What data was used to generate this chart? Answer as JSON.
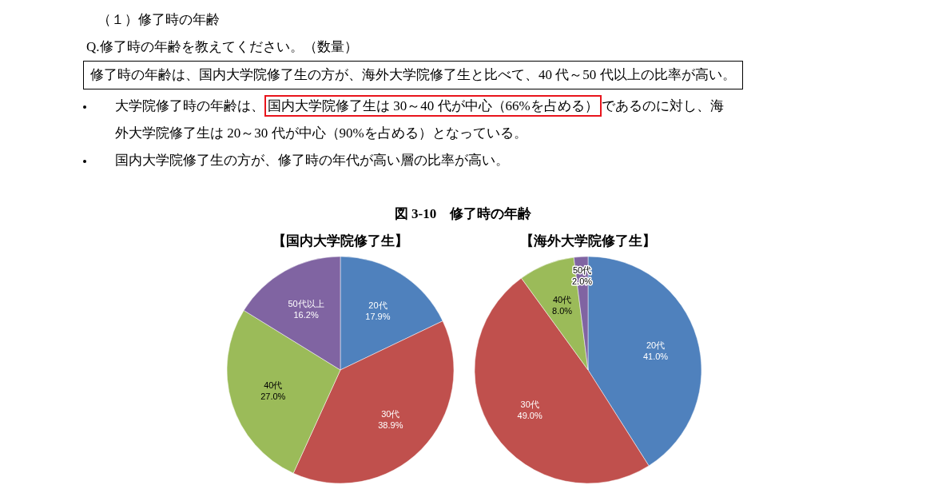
{
  "chart_data": [
    {
      "type": "other",
      "title": "（１）修了時の年齢",
      "annotations": [
        "Q.修了時の年齢を教えてください。（数量）",
        "修了時の年齢は、国内大学院修了生の方が、海外大学院修了生と比べて、40 代～50 代以上の比率が高い。",
        "大学院修了時の年齢は、",
        "国内大学院修了生は 30～40 代が中心（66%を占める）",
        "であるのに対し、海",
        "外大学院修了生は 20～30 代が中心（90%を占める）となっている。",
        "国内大学院修了生の方が、修了時の年代が高い層の比率が高い。",
        "図 3-10　修了時の年齢"
      ]
    },
    {
      "type": "pie",
      "title": "【国内大学院修了生】",
      "categories": [
        "20代",
        "30代",
        "40代",
        "50代以上"
      ],
      "values": [
        17.9,
        38.9,
        27.0,
        16.2
      ],
      "colors": [
        "#4f81bd",
        "#c0504d",
        "#9bbb59",
        "#8064a2"
      ],
      "value_labels": [
        "17.9%",
        "38.9%",
        "27.0%",
        "16.2%"
      ]
    },
    {
      "type": "pie",
      "title": "【海外大学院修了生】",
      "categories": [
        "20代",
        "30代",
        "40代",
        "50代"
      ],
      "values": [
        41.0,
        49.0,
        8.0,
        2.0
      ],
      "colors": [
        "#4f81bd",
        "#c0504d",
        "#9bbb59",
        "#8064a2"
      ],
      "value_labels": [
        "41.0%",
        "49.0%",
        "8.0%",
        "2.0%"
      ]
    }
  ]
}
